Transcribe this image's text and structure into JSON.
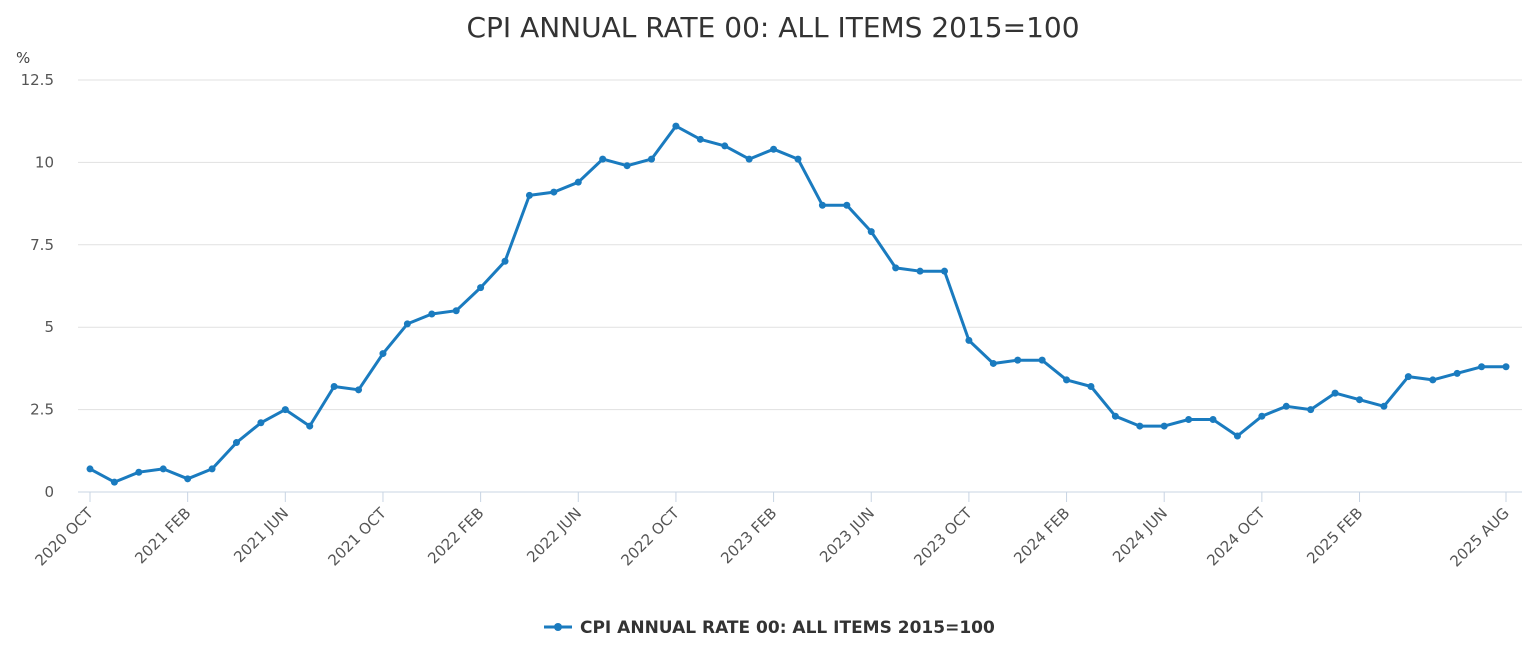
{
  "chart_data": {
    "type": "line",
    "title": "CPI ANNUAL RATE 00: ALL ITEMS 2015=100",
    "ylabel": "%",
    "xlabel": "",
    "ylim": [
      0,
      12.5
    ],
    "yticks": [
      "0",
      "2.5",
      "5",
      "7.5",
      "10",
      "12.5"
    ],
    "ytick_values": [
      0,
      2.5,
      5,
      7.5,
      10,
      12.5
    ],
    "grid": true,
    "legend_position": "bottom-center",
    "x": [
      "2020 OCT",
      "2020 NOV",
      "2020 DEC",
      "2021 JAN",
      "2021 FEB",
      "2021 MAR",
      "2021 APR",
      "2021 MAY",
      "2021 JUN",
      "2021 JUL",
      "2021 AUG",
      "2021 SEP",
      "2021 OCT",
      "2021 NOV",
      "2021 DEC",
      "2022 JAN",
      "2022 FEB",
      "2022 MAR",
      "2022 APR",
      "2022 MAY",
      "2022 JUN",
      "2022 JUL",
      "2022 AUG",
      "2022 SEP",
      "2022 OCT",
      "2022 NOV",
      "2022 DEC",
      "2023 JAN",
      "2023 FEB",
      "2023 MAR",
      "2023 APR",
      "2023 MAY",
      "2023 JUN",
      "2023 JUL",
      "2023 AUG",
      "2023 SEP",
      "2023 OCT",
      "2023 NOV",
      "2023 DEC",
      "2024 JAN",
      "2024 FEB",
      "2024 MAR",
      "2024 APR",
      "2024 MAY",
      "2024 JUN",
      "2024 JUL",
      "2024 AUG",
      "2024 SEP",
      "2024 OCT",
      "2024 NOV",
      "2024 DEC",
      "2025 JAN",
      "2025 FEB",
      "2025 MAR",
      "2025 APR",
      "2025 MAY",
      "2025 JUN",
      "2025 JUL",
      "2025 AUG"
    ],
    "xticks": [
      "2020 OCT",
      "2021 FEB",
      "2021 JUN",
      "2021 OCT",
      "2022 FEB",
      "2022 JUN",
      "2022 OCT",
      "2023 FEB",
      "2023 JUN",
      "2023 OCT",
      "2024 FEB",
      "2024 JUN",
      "2024 OCT",
      "2025 FEB",
      "2025 AUG"
    ],
    "series": [
      {
        "name": "CPI ANNUAL RATE 00: ALL ITEMS 2015=100",
        "color": "#1a7bbf",
        "values": [
          0.7,
          0.3,
          0.6,
          0.7,
          0.4,
          0.7,
          1.5,
          2.1,
          2.5,
          2.0,
          3.2,
          3.1,
          4.2,
          5.1,
          5.4,
          5.5,
          6.2,
          7.0,
          9.0,
          9.1,
          9.4,
          10.1,
          9.9,
          10.1,
          11.1,
          10.7,
          10.5,
          10.1,
          10.4,
          10.1,
          8.7,
          8.7,
          7.9,
          6.8,
          6.7,
          6.7,
          4.6,
          3.9,
          4.0,
          4.0,
          3.4,
          3.2,
          2.3,
          2.0,
          2.0,
          2.2,
          2.2,
          1.7,
          2.3,
          2.6,
          2.5,
          3.0,
          2.8,
          2.6,
          3.5,
          3.4,
          3.6,
          3.8,
          3.8
        ]
      }
    ]
  }
}
